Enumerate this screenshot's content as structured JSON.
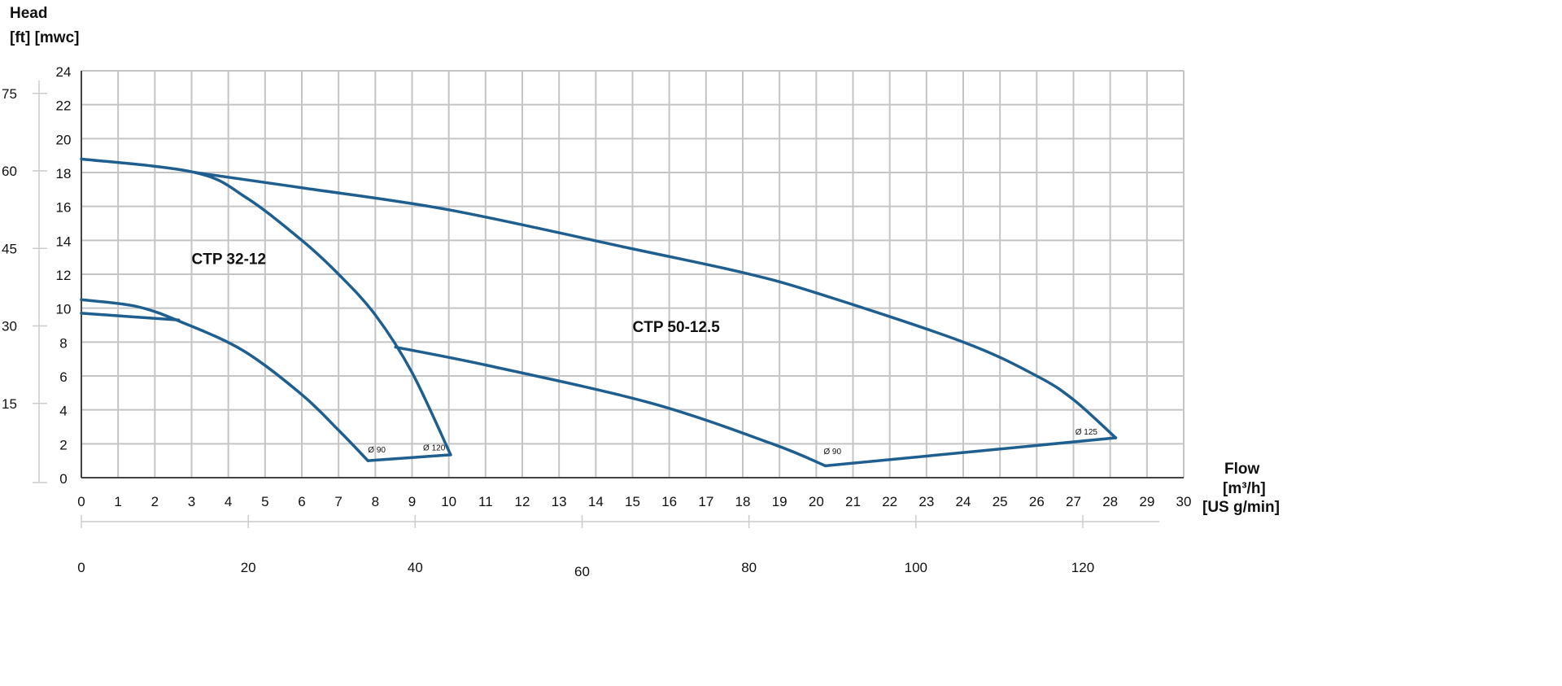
{
  "chart_data": {
    "type": "line",
    "title": "",
    "y_title": "Head",
    "y_units": "[ft] [mwc]",
    "x_title": "Flow",
    "x_units_primary": "[m³/h]",
    "x_units_secondary": "[US g/min]",
    "xlim": [
      0,
      30
    ],
    "ylim": [
      0,
      24
    ],
    "grid": true,
    "x_ticks": [
      0,
      1,
      2,
      3,
      4,
      5,
      6,
      7,
      8,
      9,
      10,
      11,
      12,
      13,
      14,
      15,
      16,
      17,
      18,
      19,
      20,
      21,
      22,
      23,
      24,
      25,
      26,
      27,
      28,
      29,
      30
    ],
    "y_ticks": [
      0,
      2,
      4,
      6,
      8,
      10,
      12,
      14,
      16,
      18,
      20,
      22,
      24
    ],
    "y_ft_ticks": [
      15,
      30,
      45,
      60,
      75
    ],
    "x_gpm_ticks": [
      0,
      20,
      40,
      60,
      80,
      100,
      120
    ],
    "line_color": "#1f5f8f",
    "series": [
      {
        "group": "CTP 32-12",
        "diameter": "Ø 120",
        "x": [
          0,
          3.1,
          4.5,
          6.0,
          7.0,
          8.0,
          9.0,
          10.05
        ],
        "y": [
          18.8,
          18.0,
          16.5,
          14.0,
          12.0,
          9.6,
          6.2,
          1.35
        ]
      },
      {
        "group": "CTP 32-12",
        "diameter": "Ø 90",
        "x": [
          0,
          1.5,
          2.7,
          4.4,
          6.0,
          7.0,
          7.8
        ],
        "y": [
          10.5,
          10.1,
          9.2,
          7.5,
          4.9,
          2.8,
          1.0
        ]
      },
      {
        "group": "CTP 32-12",
        "diameter": "",
        "x": [
          0,
          2.65
        ],
        "y": [
          9.7,
          9.3
        ]
      },
      {
        "group": "CTP 32-12",
        "diameter": "",
        "x": [
          7.8,
          10.05
        ],
        "y": [
          1.0,
          1.35
        ]
      },
      {
        "group": "CTP 50-12.5",
        "diameter": "Ø 125",
        "x": [
          3.1,
          6,
          10,
          15,
          18,
          20,
          24,
          26,
          27,
          28.15
        ],
        "y": [
          18.0,
          17.1,
          15.8,
          13.5,
          12.1,
          10.9,
          8.0,
          6.0,
          4.6,
          2.35
        ]
      },
      {
        "group": "CTP 50-12.5",
        "diameter": "Ø 90",
        "x": [
          8.55,
          11.1,
          15.5,
          18.8,
          20.25
        ],
        "y": [
          7.7,
          6.6,
          4.4,
          2.0,
          0.7
        ]
      },
      {
        "group": "CTP 50-12.5",
        "diameter": "",
        "x": [
          20.25,
          28.15
        ],
        "y": [
          0.7,
          2.35
        ]
      }
    ],
    "annotations": [
      {
        "text": "CTP 32-12",
        "x": 3.0,
        "y": 12.6,
        "kind": "model"
      },
      {
        "text": "CTP 50-12.5",
        "x": 15.0,
        "y": 8.6,
        "kind": "model"
      },
      {
        "text": "Ø 90",
        "x": 7.8,
        "y": 1.5,
        "kind": "diameter"
      },
      {
        "text": "Ø 120",
        "x": 9.3,
        "y": 1.6,
        "kind": "diameter"
      },
      {
        "text": "Ø 90",
        "x": 20.2,
        "y": 1.4,
        "kind": "diameter"
      },
      {
        "text": "Ø 125",
        "x": 27.05,
        "y": 2.55,
        "kind": "diameter"
      }
    ]
  }
}
